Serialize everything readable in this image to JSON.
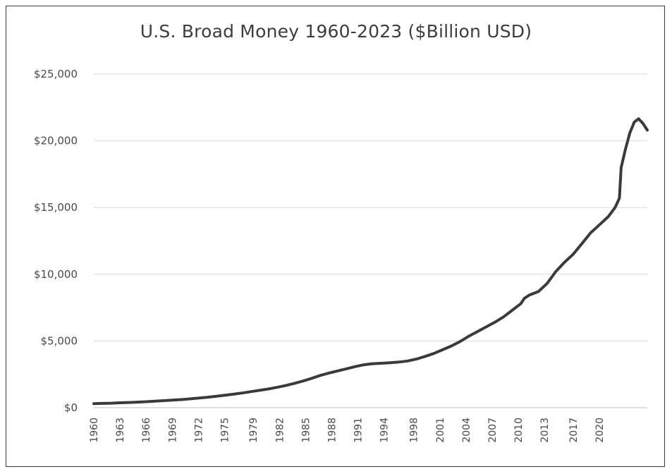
{
  "chart_data": {
    "type": "line",
    "title": "U.S. Broad Money 1960-2023 ($Billion USD)",
    "xlabel": "",
    "ylabel": "",
    "ylim": [
      0,
      25000
    ],
    "xlim": [
      1960,
      2023.5
    ],
    "y_ticks": [
      "$0",
      "$5,000",
      "$10,000",
      "$15,000",
      "$20,000",
      "$25,000"
    ],
    "y_tick_values": [
      0,
      5000,
      10000,
      15000,
      20000,
      25000
    ],
    "x_ticks": [
      "1960",
      "1963",
      "1966",
      "1969",
      "1972",
      "1975",
      "1979",
      "1982",
      "1985",
      "1988",
      "1991",
      "1994",
      "1998",
      "2001",
      "2004",
      "2007",
      "2010",
      "2013",
      "2017",
      "2020"
    ],
    "x_tick_values": [
      1960,
      1963,
      1966,
      1969,
      1972,
      1975,
      1978.3,
      1981.3,
      1984.3,
      1987.3,
      1990.3,
      1993.3,
      1996.7,
      1999.7,
      2002.7,
      2005.7,
      2008.7,
      2011.7,
      2015,
      2018
    ],
    "grid": true,
    "legend": "none",
    "series": [
      {
        "color": "#3a3a3a",
        "points": [
          [
            1960,
            300
          ],
          [
            1961,
            320
          ],
          [
            1962,
            340
          ],
          [
            1963,
            370
          ],
          [
            1964,
            390
          ],
          [
            1965,
            420
          ],
          [
            1966,
            450
          ],
          [
            1967,
            490
          ],
          [
            1968,
            530
          ],
          [
            1969,
            570
          ],
          [
            1970,
            610
          ],
          [
            1971,
            660
          ],
          [
            1972,
            720
          ],
          [
            1973,
            780
          ],
          [
            1974,
            850
          ],
          [
            1975,
            930
          ],
          [
            1976,
            1010
          ],
          [
            1977,
            1100
          ],
          [
            1978,
            1200
          ],
          [
            1979,
            1300
          ],
          [
            1980,
            1400
          ],
          [
            1981,
            1520
          ],
          [
            1982,
            1660
          ],
          [
            1983,
            1820
          ],
          [
            1984,
            2000
          ],
          [
            1985,
            2200
          ],
          [
            1986,
            2420
          ],
          [
            1987,
            2600
          ],
          [
            1988,
            2760
          ],
          [
            1989,
            2920
          ],
          [
            1990,
            3080
          ],
          [
            1991,
            3220
          ],
          [
            1992,
            3300
          ],
          [
            1993,
            3330
          ],
          [
            1994,
            3370
          ],
          [
            1995,
            3420
          ],
          [
            1996,
            3500
          ],
          [
            1997,
            3640
          ],
          [
            1998,
            3840
          ],
          [
            1999,
            4060
          ],
          [
            2000,
            4340
          ],
          [
            2001,
            4620
          ],
          [
            2002,
            4950
          ],
          [
            2003,
            5350
          ],
          [
            2004,
            5700
          ],
          [
            2005,
            6050
          ],
          [
            2006,
            6400
          ],
          [
            2007,
            6800
          ],
          [
            2008,
            7300
          ],
          [
            2009,
            7800
          ],
          [
            2009.4,
            8200
          ],
          [
            2010,
            8450
          ],
          [
            2011,
            8700
          ],
          [
            2012,
            9300
          ],
          [
            2013,
            10200
          ],
          [
            2014,
            10900
          ],
          [
            2015,
            11500
          ],
          [
            2016,
            12300
          ],
          [
            2017,
            13100
          ],
          [
            2018,
            13700
          ],
          [
            2019,
            14300
          ],
          [
            2019.8,
            15000
          ],
          [
            2020.3,
            15700
          ],
          [
            2020.5,
            18000
          ],
          [
            2021,
            19400
          ],
          [
            2021.5,
            20600
          ],
          [
            2022,
            21400
          ],
          [
            2022.5,
            21650
          ],
          [
            2023,
            21300
          ],
          [
            2023.5,
            20800
          ]
        ]
      }
    ]
  }
}
